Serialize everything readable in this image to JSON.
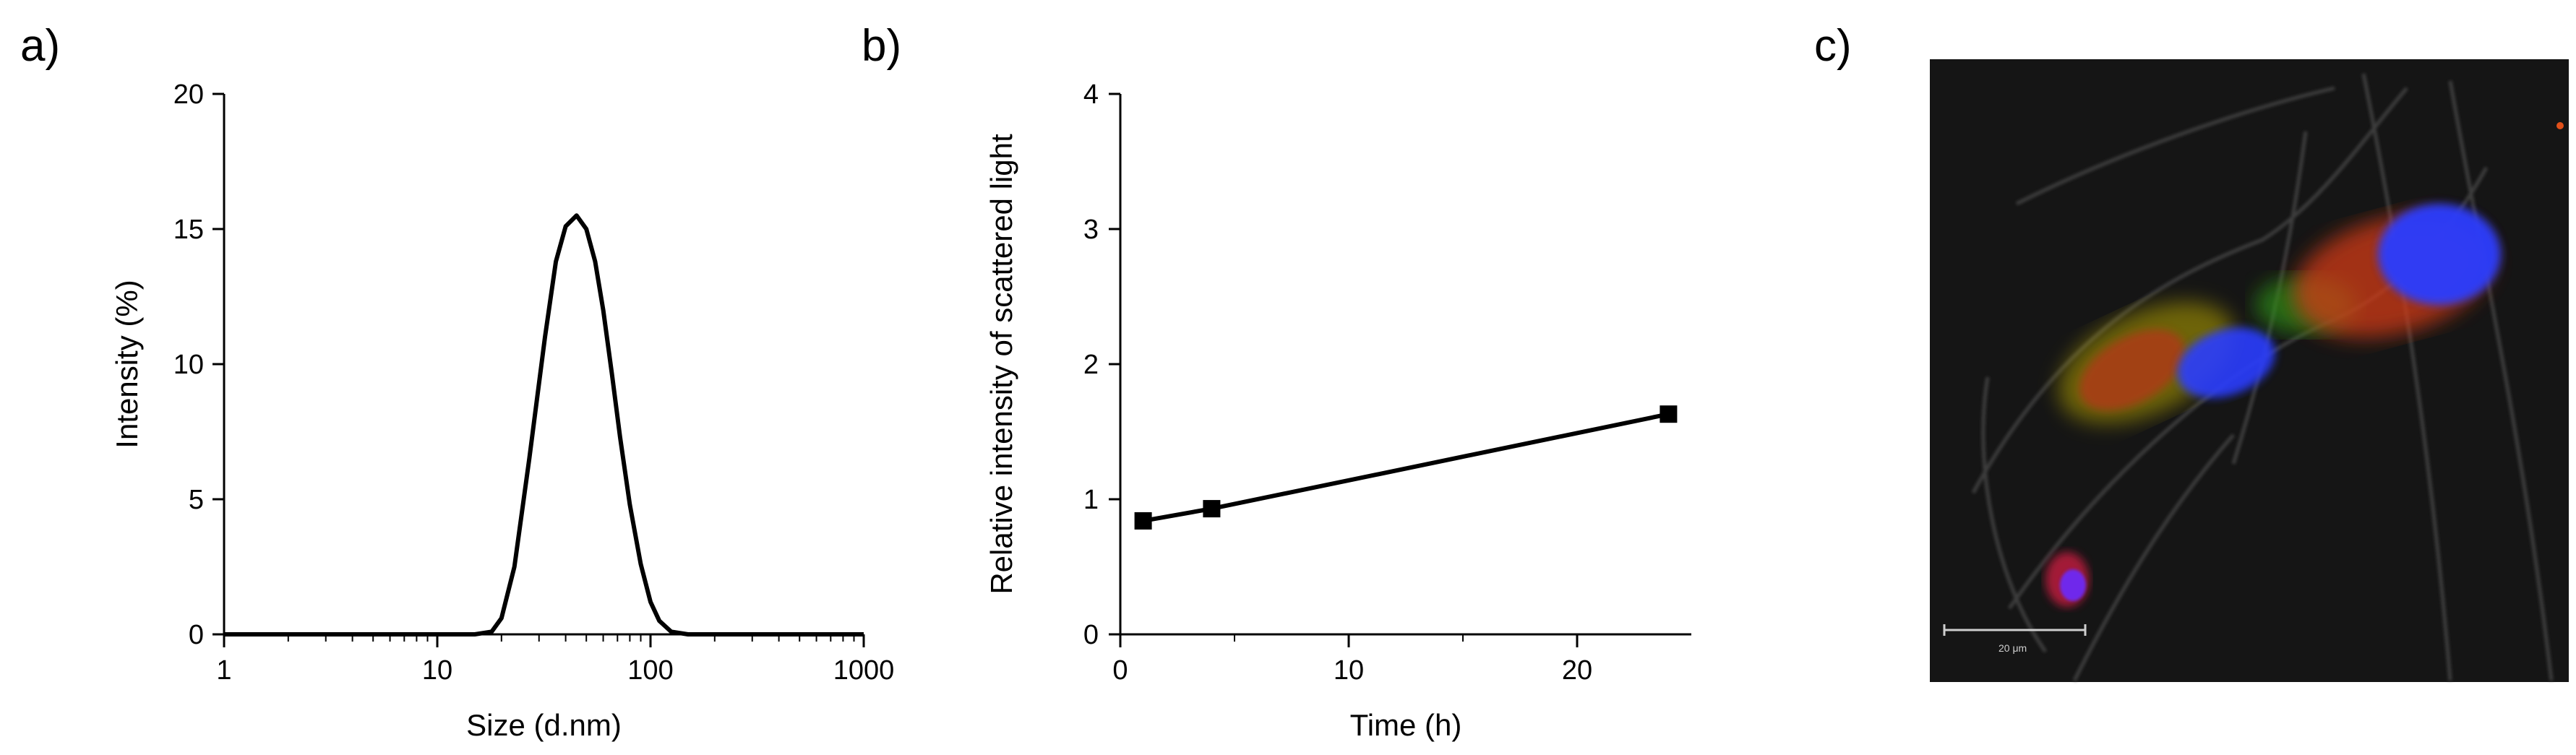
{
  "panels": {
    "a": "a)",
    "b": "b)",
    "c": "c)"
  },
  "chart_data": [
    {
      "type": "line",
      "panel": "a)",
      "xlabel": "Size (d.nm)",
      "ylabel": "Intensity (%)",
      "xscale": "log",
      "xlim": [
        1,
        1000
      ],
      "ylim": [
        0,
        20
      ],
      "xticks": [
        "1",
        "10",
        "100",
        "1000"
      ],
      "yticks": [
        "0",
        "5",
        "10",
        "15",
        "20"
      ],
      "grid": false,
      "series": [
        {
          "x": [
            1,
            5,
            10,
            15,
            18,
            20,
            23,
            27,
            32,
            36,
            40,
            45,
            50,
            55,
            60,
            66,
            72,
            80,
            90,
            100,
            110,
            125,
            150,
            300,
            1000
          ],
          "y": [
            0,
            0,
            0,
            0,
            0.1,
            0.6,
            2.5,
            6.5,
            11.0,
            13.8,
            15.1,
            15.5,
            15.0,
            13.8,
            12.0,
            9.6,
            7.3,
            4.8,
            2.6,
            1.2,
            0.5,
            0.1,
            0,
            0,
            0
          ]
        }
      ]
    },
    {
      "type": "line",
      "panel": "b)",
      "xlabel": "Time (h)",
      "ylabel": "Relative intensity of scattered light",
      "xlim": [
        0,
        25
      ],
      "ylim": [
        0,
        4
      ],
      "xticks": [
        "0",
        "10",
        "20"
      ],
      "yticks": [
        "0",
        "1",
        "2",
        "3",
        "4"
      ],
      "grid": false,
      "series": [
        {
          "x": [
            1,
            4,
            24
          ],
          "y": [
            0.84,
            0.93,
            1.63
          ]
        }
      ]
    }
  ],
  "micrograph": {
    "scale_bar_label": "20 μm"
  }
}
